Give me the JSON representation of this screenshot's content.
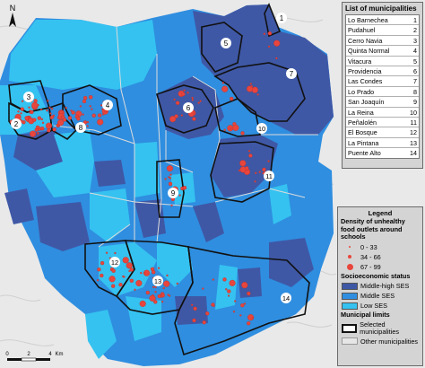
{
  "map": {
    "north_label": "N",
    "scale": {
      "ticks": [
        "0",
        "2",
        "4"
      ],
      "unit": "Km"
    },
    "colors": {
      "middle_high": "#3f58a6",
      "middle": "#2f8ee0",
      "low": "#35c2f0",
      "other": "#e6e6e6",
      "outlet": "#e8453c"
    }
  },
  "municipality_panel": {
    "title": "List of municipalities",
    "items": [
      {
        "name": "Lo Barnechea",
        "num": "1"
      },
      {
        "name": "Pudahuel",
        "num": "2"
      },
      {
        "name": "Cerro Navia",
        "num": "3"
      },
      {
        "name": "Quinta Normal",
        "num": "4"
      },
      {
        "name": "Vitacura",
        "num": "5"
      },
      {
        "name": "Providencia",
        "num": "6"
      },
      {
        "name": "Las Condes",
        "num": "7"
      },
      {
        "name": "Lo Prado",
        "num": "8"
      },
      {
        "name": "San Joaquín",
        "num": "9"
      },
      {
        "name": "La Reina",
        "num": "10"
      },
      {
        "name": "Peñalolén",
        "num": "11"
      },
      {
        "name": "El Bosque",
        "num": "12"
      },
      {
        "name": "La Pintana",
        "num": "13"
      },
      {
        "name": "Puente Alto",
        "num": "14"
      }
    ]
  },
  "legend": {
    "title": "Legend",
    "density_title": "Density of unhealthy food outlets around schools",
    "density_items": [
      "0 - 33",
      "34 - 66",
      "67 - 99"
    ],
    "ses_title": "Socioeconomic status",
    "ses_items": [
      "Middle-high SES",
      "Middle SES",
      "Low SES"
    ],
    "limits_title": "Municipal limits",
    "limits_items": [
      "Selected municipalities",
      "Other municipalities"
    ]
  }
}
